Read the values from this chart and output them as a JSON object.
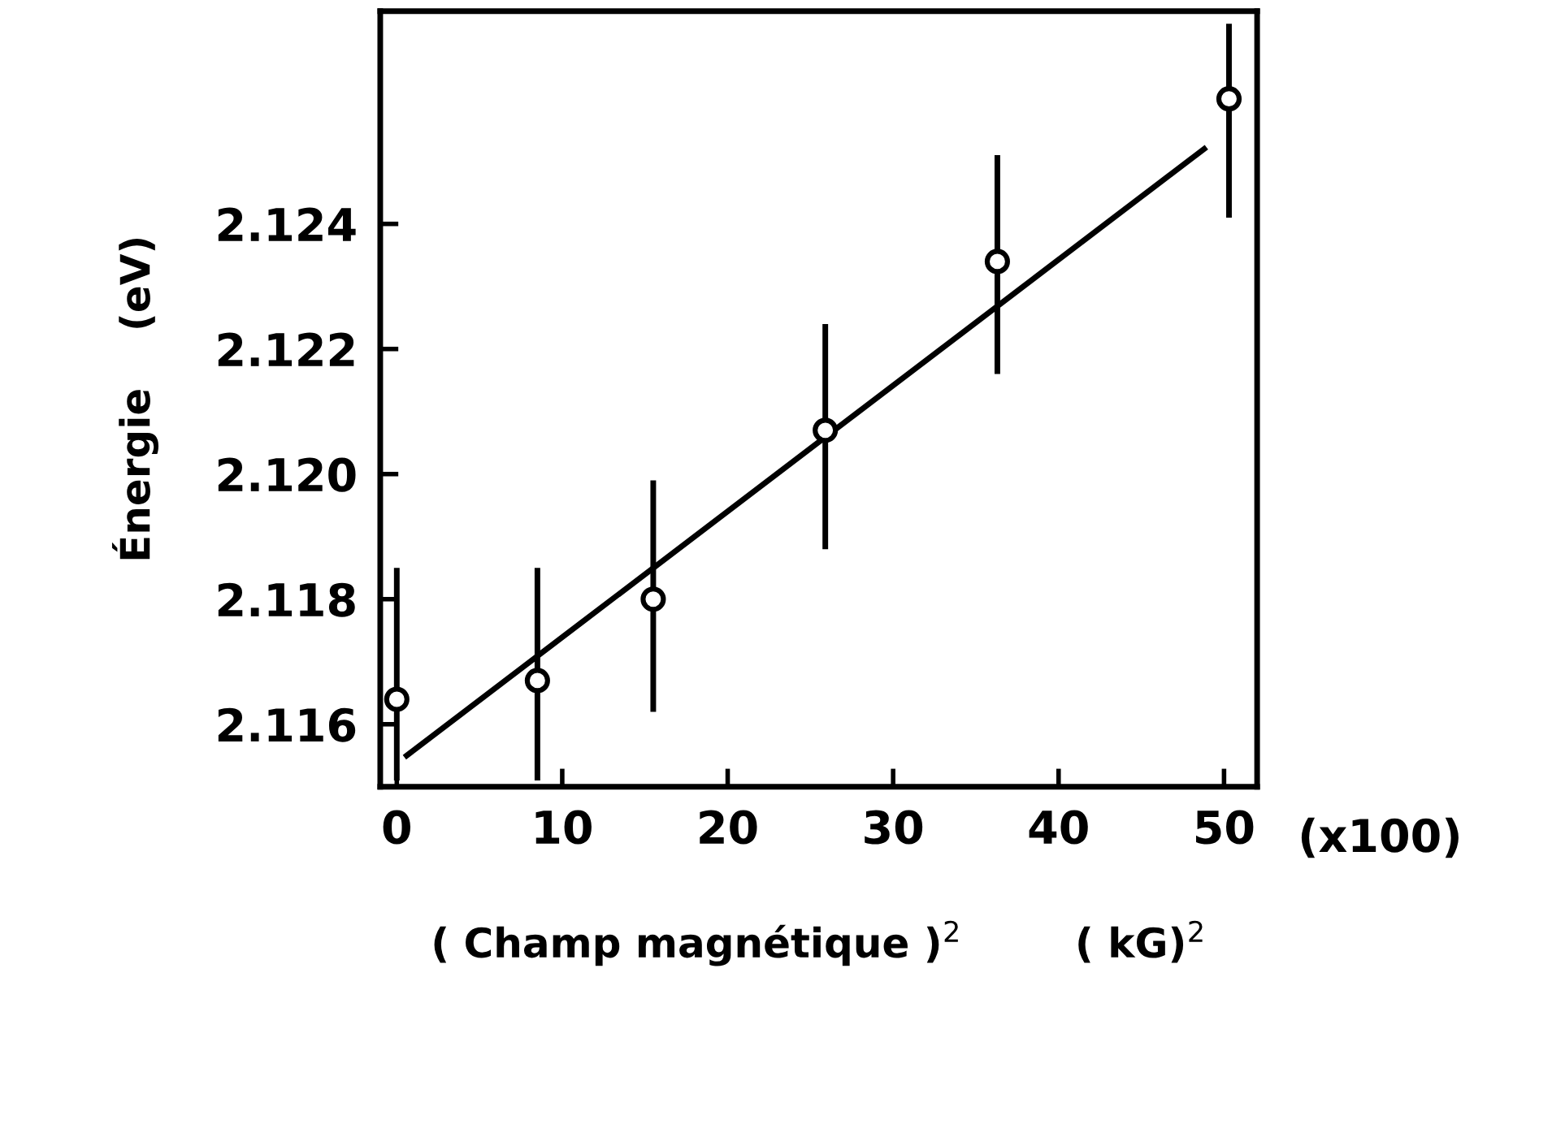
{
  "chart_data": {
    "type": "scatter",
    "xlabel": "( Champ magnétique )$^{2}$        ( kG)$^{2}$",
    "ylabel": "Énergie    (eV)",
    "annotations": [
      "(x100)"
    ],
    "xlim": [
      -1,
      52
    ],
    "xticks": [
      0,
      10,
      20,
      30,
      40,
      50
    ],
    "ylim": [
      2.115,
      2.1274
    ],
    "yticks": [
      {
        "value": 2.116,
        "label": "2.116"
      },
      {
        "value": 2.118,
        "label": "2.118"
      },
      {
        "value": 2.12,
        "label": "2.120"
      },
      {
        "value": 2.122,
        "label": "2.122"
      },
      {
        "value": 2.124,
        "label": "2.124"
      }
    ],
    "grid": false,
    "legend": false,
    "series": [
      {
        "marker": "circle",
        "color": "#000000",
        "x": [
          0,
          8.5,
          15.5,
          25.9,
          36.3,
          50.3
        ],
        "values": [
          2.1164,
          2.1167,
          2.118,
          2.1207,
          2.1234,
          2.126
        ],
        "errors": [
          [
            2.1151,
            2.1185
          ],
          [
            2.1151,
            2.1185
          ],
          [
            2.1162,
            2.1199
          ],
          [
            2.1188,
            2.1224
          ],
          [
            2.1216,
            2.1251
          ],
          [
            2.1241,
            2.1272
          ]
        ]
      },
      {
        "type": "line",
        "color": "#000000",
        "x": [
          0.6,
          48.8
        ],
        "values": [
          2.1155,
          2.1252
        ],
        "line_style": "solid"
      }
    ]
  }
}
